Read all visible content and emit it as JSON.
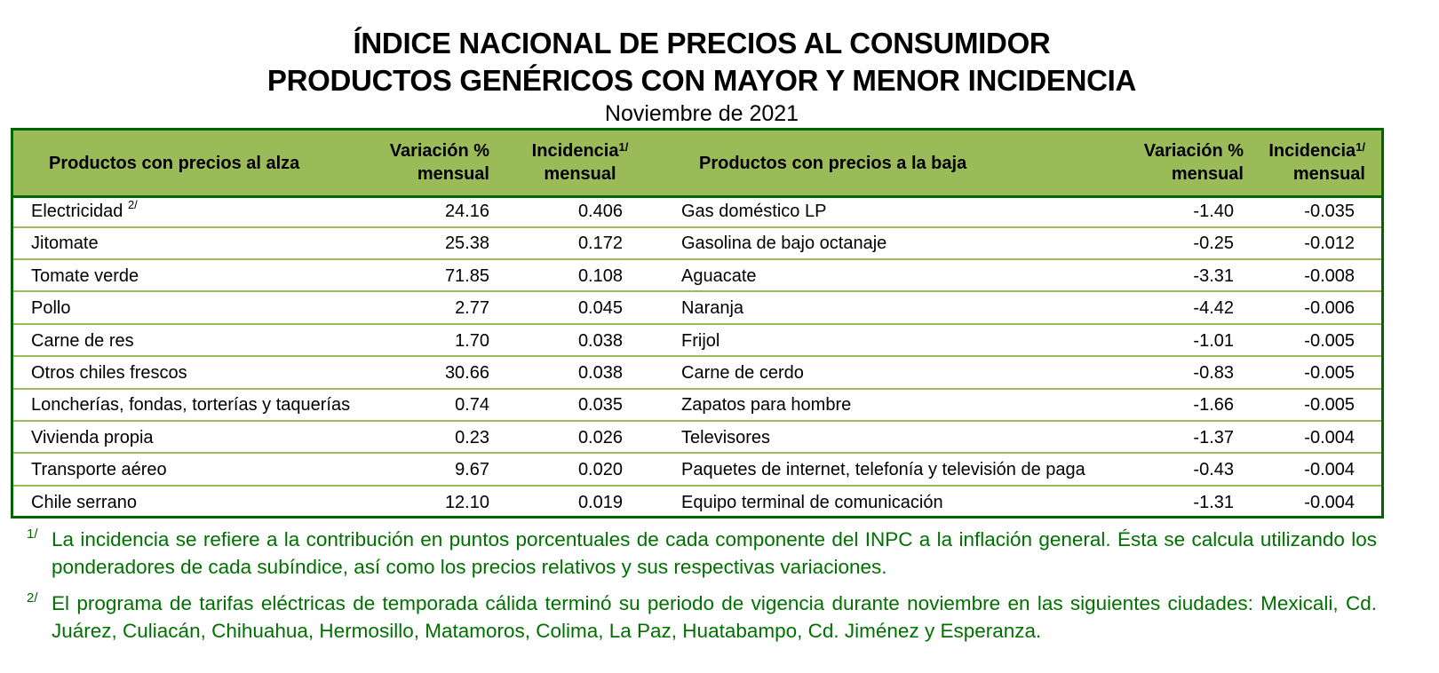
{
  "title_line1": "ÍNDICE NACIONAL DE PRECIOS AL CONSUMIDOR",
  "title_line2": "PRODUCTOS GENÉRICOS CON MAYOR Y MENOR INCIDENCIA",
  "subtitle": "Noviembre de 2021",
  "headers": {
    "left_product": "Productos con precios al alza",
    "right_product": "Productos con precios a la baja",
    "variation_l1": "Variación %",
    "variation_l2": "mensual",
    "incidence_l1": "Incidencia",
    "incidence_l2": "mensual",
    "incidence_note": "1/"
  },
  "rows": [
    {
      "up": "Electricidad",
      "up_note": "2/",
      "up_var": "24.16",
      "up_inc": "0.406",
      "down": "Gas doméstico LP",
      "down_var": "-1.40",
      "down_inc": "-0.035"
    },
    {
      "up": "Jitomate",
      "up_var": "25.38",
      "up_inc": "0.172",
      "down": "Gasolina de bajo octanaje",
      "down_var": "-0.25",
      "down_inc": "-0.012"
    },
    {
      "up": "Tomate verde",
      "up_var": "71.85",
      "up_inc": "0.108",
      "down": "Aguacate",
      "down_var": "-3.31",
      "down_inc": "-0.008"
    },
    {
      "up": "Pollo",
      "up_var": "2.77",
      "up_inc": "0.045",
      "down": "Naranja",
      "down_var": "-4.42",
      "down_inc": "-0.006"
    },
    {
      "up": "Carne de res",
      "up_var": "1.70",
      "up_inc": "0.038",
      "down": "Frijol",
      "down_var": "-1.01",
      "down_inc": "-0.005"
    },
    {
      "up": "Otros chiles frescos",
      "up_var": "30.66",
      "up_inc": "0.038",
      "down": "Carne de cerdo",
      "down_var": "-0.83",
      "down_inc": "-0.005"
    },
    {
      "up": "Loncherías, fondas, torterías y taquerías",
      "up_var": "0.74",
      "up_inc": "0.035",
      "down": "Zapatos para hombre",
      "down_var": "-1.66",
      "down_inc": "-0.005"
    },
    {
      "up": "Vivienda propia",
      "up_var": "0.23",
      "up_inc": "0.026",
      "down": "Televisores",
      "down_var": "-1.37",
      "down_inc": "-0.004"
    },
    {
      "up": "Transporte aéreo",
      "up_var": "9.67",
      "up_inc": "0.020",
      "down": "Paquetes de internet, telefonía y televisión de paga",
      "down_var": "-0.43",
      "down_inc": "-0.004"
    },
    {
      "up": "Chile serrano",
      "up_var": "12.10",
      "up_inc": "0.019",
      "down": "Equipo terminal de comunicación",
      "down_var": "-1.31",
      "down_inc": "-0.004"
    }
  ],
  "footnotes": [
    {
      "mark": "1/",
      "text": "La incidencia se refiere a la contribución en puntos porcentuales de cada componente del INPC a la inflación general. Ésta se calcula utilizando los ponderadores de cada subíndice, así como los precios relativos y sus respectivas variaciones."
    },
    {
      "mark": "2/",
      "text": "El programa de tarifas eléctricas de temporada cálida terminó su periodo de vigencia durante noviembre en las siguientes ciudades: Mexicali, Cd. Juárez, Culiacán, Chihuahua, Hermosillo, Matamoros, Colima, La Paz, Huatabampo, Cd. Jiménez y Esperanza."
    }
  ],
  "colors": {
    "header_bg": "#9BBB59",
    "border": "#006600",
    "footnote_text": "#007000"
  }
}
